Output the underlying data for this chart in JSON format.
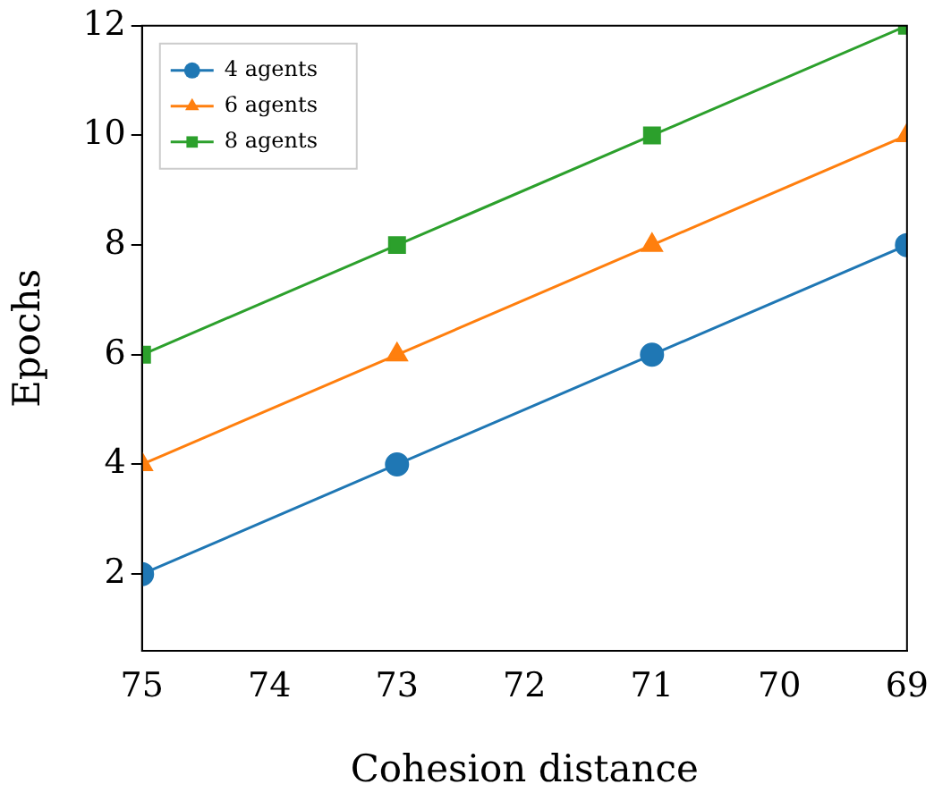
{
  "chart_data": {
    "type": "line",
    "xlabel": "Cohesion distance",
    "ylabel": "Epochs",
    "x": [
      75,
      73,
      71,
      69
    ],
    "xlim": [
      75,
      69
    ],
    "xticks": [
      75,
      74,
      73,
      72,
      71,
      70,
      69
    ],
    "ylim": [
      0.6,
      12
    ],
    "yticks": [
      2,
      4,
      6,
      8,
      10,
      12
    ],
    "grid": false,
    "legend": "top left",
    "series": [
      {
        "name": "4 agents",
        "color": "#1f77b4",
        "marker": "circle",
        "values": [
          2,
          4,
          6,
          8
        ]
      },
      {
        "name": "6 agents",
        "color": "#ff7f0e",
        "marker": "triangle",
        "values": [
          4,
          6,
          8,
          10
        ]
      },
      {
        "name": "8 agents",
        "color": "#2ca02c",
        "marker": "square",
        "values": [
          6,
          8,
          10,
          12
        ]
      }
    ]
  }
}
